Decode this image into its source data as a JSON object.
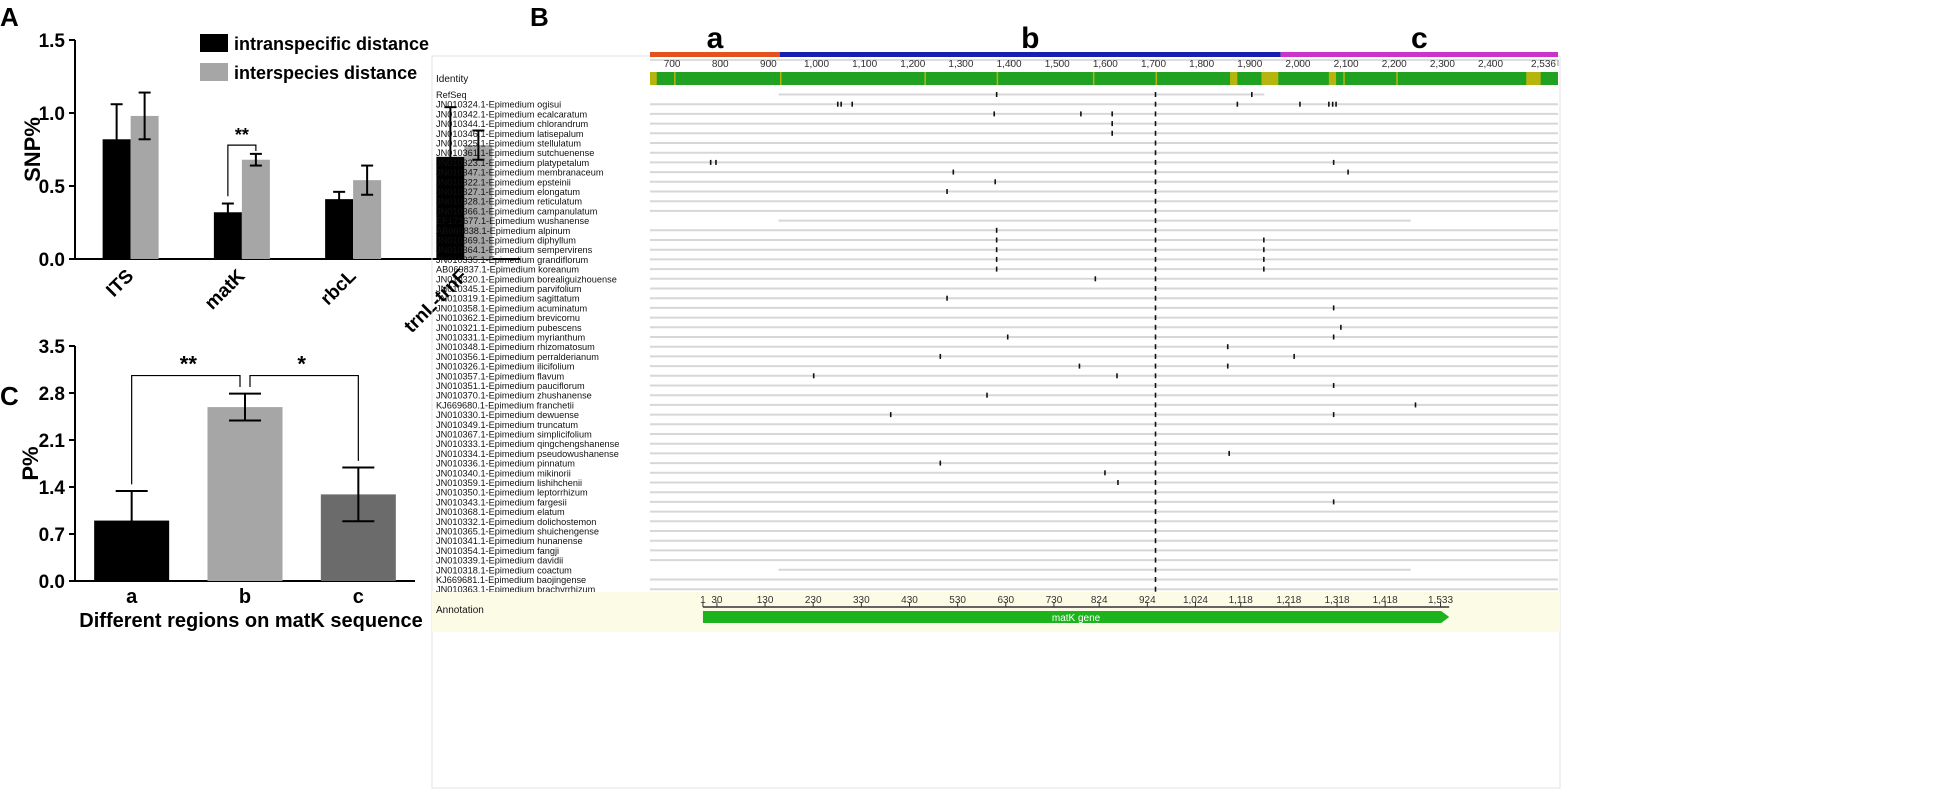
{
  "panels": {
    "A": "A",
    "B": "B",
    "C": "C"
  },
  "chart_data": [
    {
      "panel": "A",
      "type": "bar",
      "ylabel": "SNP%",
      "categories": [
        "ITS",
        "matK",
        "rbcL",
        "trnL-trnF"
      ],
      "series": [
        {
          "name": "intranspecific distance",
          "color": "#000000",
          "values": [
            0.82,
            0.32,
            0.41,
            0.7
          ],
          "errors": [
            0.24,
            0.06,
            0.05,
            0.34
          ]
        },
        {
          "name": "interspecies distance",
          "color": "#a6a6a6",
          "values": [
            0.98,
            0.68,
            0.54,
            0.78
          ],
          "errors": [
            0.16,
            0.04,
            0.1,
            0.1
          ]
        }
      ],
      "ylim": [
        0,
        1.5
      ],
      "yticks": [
        "0.0",
        "0.5",
        "1.0",
        "1.5"
      ],
      "legend": "top-right",
      "annotations": [
        {
          "text": "**",
          "category": "matK"
        }
      ]
    },
    {
      "panel": "C",
      "type": "bar",
      "ylabel": "P%",
      "xlabel": "Different regions on matK sequence",
      "categories": [
        "a",
        "b",
        "c"
      ],
      "values": [
        0.9,
        2.59,
        1.29
      ],
      "errors": [
        0.44,
        0.2,
        0.4
      ],
      "colors": [
        "#000000",
        "#a6a6a6",
        "#6b6b6b"
      ],
      "ylim": [
        0,
        3.5
      ],
      "yticks": [
        "0.0",
        "0.7",
        "1.4",
        "2.1",
        "2.8",
        "3.5"
      ],
      "annotations": [
        {
          "text": "**",
          "from": "a",
          "to": "b"
        },
        {
          "text": "*",
          "from": "b",
          "to": "c"
        }
      ]
    },
    {
      "panel": "B",
      "type": "alignment",
      "regions": [
        {
          "label": "a",
          "start": 650,
          "end": 920,
          "color": "#e2521d"
        },
        {
          "label": "b",
          "start": 920,
          "end": 1960,
          "color": "#1520b0"
        },
        {
          "label": "c",
          "start": 1960,
          "end": 2536,
          "color": "#cc33cc"
        }
      ],
      "ruler_range": [
        650,
        2536
      ],
      "ruler_ticks": [
        700,
        800,
        900,
        1000,
        1100,
        1200,
        1300,
        1400,
        1500,
        1600,
        1700,
        1800,
        1900,
        2000,
        2100,
        2200,
        2300,
        2400,
        2536
      ],
      "ruler_tick_labels": [
        "700",
        "800",
        "900",
        "1,000",
        "1,100",
        "1,200",
        "1,300",
        "1,400",
        "1,500",
        "1,600",
        "1,700",
        "1,800",
        "1,900",
        "2,000",
        "2,100",
        "2,200",
        "2,300",
        "2,400",
        "2,536"
      ],
      "identity_label": "Identity",
      "annotation_label": "Annotation",
      "gene_label": "matK gene",
      "gene_range": [
        760,
        2310
      ],
      "gene_ticks": [
        {
          "pos": 760,
          "label": "1"
        },
        {
          "pos": 789,
          "label": "30"
        },
        {
          "pos": 889,
          "label": "130"
        },
        {
          "pos": 989,
          "label": "230"
        },
        {
          "pos": 1089,
          "label": "330"
        },
        {
          "pos": 1189,
          "label": "430"
        },
        {
          "pos": 1289,
          "label": "530"
        },
        {
          "pos": 1389,
          "label": "630"
        },
        {
          "pos": 1489,
          "label": "730"
        },
        {
          "pos": 1583,
          "label": "824"
        },
        {
          "pos": 1683,
          "label": "924"
        },
        {
          "pos": 1783,
          "label": "1,024"
        },
        {
          "pos": 1877,
          "label": "1,118"
        },
        {
          "pos": 1977,
          "label": "1,218"
        },
        {
          "pos": 2077,
          "label": "1,318"
        },
        {
          "pos": 2177,
          "label": "1,418"
        },
        {
          "pos": 2292,
          "label": "1,533"
        }
      ],
      "sequences": [
        {
          "name": "RefSeq",
          "start": 917,
          "end": 1926,
          "snps": [
            1370,
            1700,
            1900
          ]
        },
        {
          "name": "JN010324.1-Epimedium ogisui",
          "start": 650,
          "end": 2536,
          "snps": [
            1040,
            1047,
            1070,
            1700,
            1870,
            2000,
            2060,
            2068,
            2075
          ]
        },
        {
          "name": "JN010342.1-Epimedium ecalcaratum",
          "start": 650,
          "end": 2536,
          "snps": [
            1365,
            1545,
            1610,
            1700
          ]
        },
        {
          "name": "JN010344.1-Epimedium chlorandrum",
          "start": 650,
          "end": 2536,
          "snps": [
            1610,
            1700
          ]
        },
        {
          "name": "JN010346.1-Epimedium latisepalum",
          "start": 650,
          "end": 2536,
          "snps": [
            1610,
            1700
          ]
        },
        {
          "name": "JN010325.1-Epimedium stellulatum",
          "start": 650,
          "end": 2536,
          "snps": [
            1700
          ]
        },
        {
          "name": "JN010361.1-Epimedium sutchuenense",
          "start": 650,
          "end": 2536,
          "snps": [
            1700
          ]
        },
        {
          "name": "JN010323.1-Epimedium platypetalum",
          "start": 650,
          "end": 2536,
          "snps": [
            776,
            787,
            1700,
            2070
          ]
        },
        {
          "name": "JN010347.1-Epimedium membranaceum",
          "start": 650,
          "end": 2536,
          "snps": [
            1280,
            1700,
            2100
          ]
        },
        {
          "name": "JN010322.1-Epimedium epsteinii",
          "start": 650,
          "end": 2536,
          "snps": [
            1367,
            1700
          ]
        },
        {
          "name": "JN010327.1-Epimedium elongatum",
          "start": 650,
          "end": 2536,
          "snps": [
            1267,
            1700
          ]
        },
        {
          "name": "JN010328.1-Epimedium reticulatum",
          "start": 650,
          "end": 2536,
          "snps": [
            1700
          ]
        },
        {
          "name": "JN010366.1-Epimedium campanulatum",
          "start": 650,
          "end": 2536,
          "snps": [
            1700
          ]
        },
        {
          "name": "EF173677.1-Epimedium wushanense",
          "start": 917,
          "end": 2230,
          "snps": [
            1700
          ]
        },
        {
          "name": "AB069838.1-Epimedium alpinum",
          "start": 650,
          "end": 2536,
          "snps": [
            1370,
            1700
          ]
        },
        {
          "name": "JN010369.1-Epimedium diphyllum",
          "start": 650,
          "end": 2536,
          "snps": [
            1370,
            1700,
            1925
          ]
        },
        {
          "name": "JN010364.1-Epimedium sempervirens",
          "start": 650,
          "end": 2536,
          "snps": [
            1370,
            1700,
            1925
          ]
        },
        {
          "name": "JN010335.1-Epimedium grandiflorum",
          "start": 650,
          "end": 2536,
          "snps": [
            1370,
            1700,
            1925
          ]
        },
        {
          "name": "AB069837.1-Epimedium koreanum",
          "start": 650,
          "end": 2536,
          "snps": [
            1370,
            1700,
            1925
          ]
        },
        {
          "name": "JN010320.1-Epimedium borealiguizhouense",
          "start": 650,
          "end": 2536,
          "snps": [
            1575,
            1700
          ]
        },
        {
          "name": "JN010345.1-Epimedium parvifolium",
          "start": 650,
          "end": 2536,
          "snps": [
            1700
          ]
        },
        {
          "name": "JN010319.1-Epimedium sagittatum",
          "start": 650,
          "end": 2536,
          "snps": [
            1267,
            1700
          ]
        },
        {
          "name": "JN010358.1-Epimedium acuminatum",
          "start": 650,
          "end": 2536,
          "snps": [
            1700,
            2070
          ]
        },
        {
          "name": "JN010362.1-Epimedium brevicornu",
          "start": 650,
          "end": 2536,
          "snps": [
            1700
          ]
        },
        {
          "name": "JN010321.1-Epimedium pubescens",
          "start": 650,
          "end": 2536,
          "snps": [
            1700,
            2085
          ]
        },
        {
          "name": "JN010331.1-Epimedium myrianthum",
          "start": 650,
          "end": 2536,
          "snps": [
            1393,
            1700,
            2070
          ]
        },
        {
          "name": "JN010348.1-Epimedium rhizomatosum",
          "start": 650,
          "end": 2536,
          "snps": [
            1700,
            1850
          ]
        },
        {
          "name": "JN010356.1-Epimedium perralderianum",
          "start": 650,
          "end": 2536,
          "snps": [
            1253,
            1700,
            1988
          ]
        },
        {
          "name": "JN010326.1-Epimedium ilicifolium",
          "start": 650,
          "end": 2536,
          "snps": [
            1542,
            1700,
            1850
          ]
        },
        {
          "name": "JN010357.1-Epimedium flavum",
          "start": 650,
          "end": 2536,
          "snps": [
            990,
            1620,
            1700
          ]
        },
        {
          "name": "JN010351.1-Epimedium pauciflorum",
          "start": 650,
          "end": 2536,
          "snps": [
            1700,
            2070
          ]
        },
        {
          "name": "JN010370.1-Epimedium zhushanense",
          "start": 650,
          "end": 2536,
          "snps": [
            1350,
            1700
          ]
        },
        {
          "name": "KJ669680.1-Epimedium franchetii",
          "start": 650,
          "end": 2536,
          "snps": [
            1700,
            2240
          ]
        },
        {
          "name": "JN010330.1-Epimedium dewuense",
          "start": 650,
          "end": 2536,
          "snps": [
            1150,
            1700,
            2070
          ]
        },
        {
          "name": "JN010349.1-Epimedium truncatum",
          "start": 650,
          "end": 2536,
          "snps": [
            1700
          ]
        },
        {
          "name": "JN010367.1-Epimedium simplicifolium",
          "start": 650,
          "end": 2536,
          "snps": [
            1700
          ]
        },
        {
          "name": "JN010333.1-Epimedium qingchengshanense",
          "start": 650,
          "end": 2536,
          "snps": [
            1700
          ]
        },
        {
          "name": "JN010334.1-Epimedium pseudowushanense",
          "start": 650,
          "end": 2536,
          "snps": [
            1700,
            1853
          ]
        },
        {
          "name": "JN010336.1-Epimedium pinnatum",
          "start": 650,
          "end": 2536,
          "snps": [
            1253,
            1700
          ]
        },
        {
          "name": "JN010340.1-Epimedium mikinorii",
          "start": 650,
          "end": 2536,
          "snps": [
            1595,
            1700
          ]
        },
        {
          "name": "JN010359.1-Epimedium lishihchenii",
          "start": 650,
          "end": 2536,
          "snps": [
            1622,
            1700
          ]
        },
        {
          "name": "JN010350.1-Epimedium leptorrhizum",
          "start": 650,
          "end": 2536,
          "snps": [
            1700
          ]
        },
        {
          "name": "JN010343.1-Epimedium fargesii",
          "start": 650,
          "end": 2536,
          "snps": [
            1700,
            2070
          ]
        },
        {
          "name": "JN010368.1-Epimedium elatum",
          "start": 650,
          "end": 2536,
          "snps": [
            1700
          ]
        },
        {
          "name": "JN010332.1-Epimedium dolichostemon",
          "start": 650,
          "end": 2536,
          "snps": [
            1700
          ]
        },
        {
          "name": "JN010365.1-Epimedium shuichengense",
          "start": 650,
          "end": 2536,
          "snps": [
            1700
          ]
        },
        {
          "name": "JN010341.1-Epimedium hunanense",
          "start": 650,
          "end": 2536,
          "snps": [
            1700
          ]
        },
        {
          "name": "JN010354.1-Epimedium fangji",
          "start": 650,
          "end": 2536,
          "snps": [
            1700
          ]
        },
        {
          "name": "JN010339.1-Epimedium davidii",
          "start": 650,
          "end": 2536,
          "snps": [
            1700
          ]
        },
        {
          "name": "JN010318.1-Epimedium coactum",
          "start": 917,
          "end": 2230,
          "snps": [
            1700
          ]
        },
        {
          "name": "KJ669681.1-Epimedium baojingense",
          "start": 650,
          "end": 2536,
          "snps": [
            1700
          ]
        },
        {
          "name": "JN010363.1-Epimedium brachyrrhizum",
          "start": 650,
          "end": 2536,
          "snps": [
            1700
          ]
        }
      ],
      "colors": {
        "identity_high": "#21a121",
        "identity_mid": "#b5b50d",
        "row_line": "#d7d7d7",
        "annotation_bg": "#fbfbe6",
        "gene_arrow": "#1db31d"
      }
    }
  ]
}
